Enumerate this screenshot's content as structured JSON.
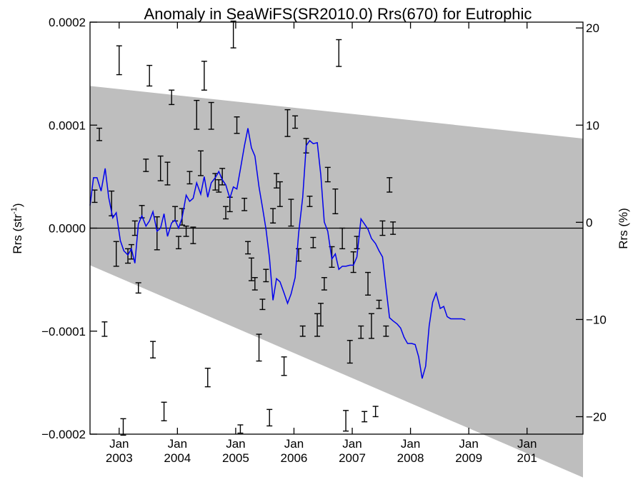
{
  "chart_data": {
    "type": "line",
    "title": "Anomaly in SeaWiFS(SR2010.0) Rrs(670) for Eutrophic",
    "ylabel": "Rrs (str",
    "ylabel_sup": "-1",
    "ylabel_close": ")",
    "y2label": "Rrs (%)",
    "xlim": [
      2002.5,
      2010.96
    ],
    "ylim": [
      -0.0002,
      0.0002
    ],
    "y2lim": [
      -21.8,
      20.6
    ],
    "x_ticks": [
      {
        "x": 2003.0,
        "top": "Jan",
        "bottom": "2003"
      },
      {
        "x": 2004.0,
        "top": "Jan",
        "bottom": "2004"
      },
      {
        "x": 2005.0,
        "top": "Jan",
        "bottom": "2005"
      },
      {
        "x": 2006.0,
        "top": "Jan",
        "bottom": "2006"
      },
      {
        "x": 2007.0,
        "top": "Jan",
        "bottom": "2007"
      },
      {
        "x": 2008.0,
        "top": "Jan",
        "bottom": "2008"
      },
      {
        "x": 2009.0,
        "top": "Jan",
        "bottom": "2009"
      },
      {
        "x": 2010.0,
        "top": "Jan",
        "bottom": "201"
      }
    ],
    "y_ticks": [
      {
        "value": 0.0002,
        "label": "0.0002"
      },
      {
        "value": 0.0001,
        "label": "0.0001"
      },
      {
        "value": 0.0,
        "label": "0.0000"
      },
      {
        "value": -0.0001,
        "label": "−0.0001"
      },
      {
        "value": -0.0002,
        "label": "−0.0002"
      }
    ],
    "y2_ticks": [
      {
        "value": 20,
        "label": "20"
      },
      {
        "value": 10,
        "label": "10"
      },
      {
        "value": 0,
        "label": "0"
      },
      {
        "value": -10,
        "label": "−10"
      },
      {
        "value": -20,
        "label": "−20"
      }
    ],
    "zero_line": 0.0,
    "band": {
      "color": "#bebebe",
      "upper": [
        [
          2002.5,
          0.000138
        ],
        [
          2010.96,
          8.7e-05
        ]
      ],
      "lower": [
        [
          2002.5,
          -3.6e-05
        ],
        [
          2010.96,
          -0.000242
        ]
      ]
    },
    "series": [
      {
        "type": "line",
        "color": "#0000ee",
        "points": [
          [
            2002.5,
            2.2e-05
          ],
          [
            2002.56,
            4.9e-05
          ],
          [
            2002.62,
            4.9e-05
          ],
          [
            2002.69,
            3.6e-05
          ],
          [
            2002.76,
            5.8e-05
          ],
          [
            2002.82,
            3e-05
          ],
          [
            2002.89,
            1e-05
          ],
          [
            2002.95,
            1.5e-05
          ],
          [
            2003.02,
            -1.2e-05
          ],
          [
            2003.08,
            -2.2e-05
          ],
          [
            2003.15,
            -2.6e-05
          ],
          [
            2003.21,
            -2e-05
          ],
          [
            2003.27,
            -3.4e-05
          ],
          [
            2003.33,
            4e-06
          ],
          [
            2003.39,
            1.2e-05
          ],
          [
            2003.46,
            2e-06
          ],
          [
            2003.52,
            7e-06
          ],
          [
            2003.58,
            1.6e-05
          ],
          [
            2003.65,
            -3e-06
          ],
          [
            2003.71,
            0.0
          ],
          [
            2003.77,
            1.4e-05
          ],
          [
            2003.83,
            -8e-06
          ],
          [
            2003.9,
            5e-06
          ],
          [
            2003.96,
            8e-06
          ],
          [
            2004.02,
            0.0
          ],
          [
            2004.08,
            1e-05
          ],
          [
            2004.15,
            3.2e-05
          ],
          [
            2004.21,
            2.6e-05
          ],
          [
            2004.27,
            2.9e-05
          ],
          [
            2004.33,
            4.4e-05
          ],
          [
            2004.4,
            3.3e-05
          ],
          [
            2004.46,
            5e-05
          ],
          [
            2004.52,
            3e-05
          ],
          [
            2004.58,
            4.4e-05
          ],
          [
            2004.65,
            4.9e-05
          ],
          [
            2004.71,
            5.5e-05
          ],
          [
            2004.77,
            4.7e-05
          ],
          [
            2004.83,
            4.2e-05
          ],
          [
            2004.9,
            2.9e-05
          ],
          [
            2004.96,
            4e-05
          ],
          [
            2005.02,
            3.8e-05
          ],
          [
            2005.08,
            5.7e-05
          ],
          [
            2005.15,
            8e-05
          ],
          [
            2005.21,
            9.7e-05
          ],
          [
            2005.27,
            7.8e-05
          ],
          [
            2005.33,
            7e-05
          ],
          [
            2005.4,
            4e-05
          ],
          [
            2005.46,
            2e-05
          ],
          [
            2005.52,
            -1e-06
          ],
          [
            2005.58,
            -2.9e-05
          ],
          [
            2005.64,
            -7e-05
          ],
          [
            2005.7,
            -4.9e-05
          ],
          [
            2005.76,
            -5.2e-05
          ],
          [
            2005.83,
            -6.3e-05
          ],
          [
            2005.89,
            -7.3e-05
          ],
          [
            2005.95,
            -6.4e-05
          ],
          [
            2006.02,
            -4.8e-05
          ],
          [
            2006.08,
            -5e-06
          ],
          [
            2006.15,
            3e-05
          ],
          [
            2006.21,
            8e-05
          ],
          [
            2006.27,
            8.5e-05
          ],
          [
            2006.33,
            8.2e-05
          ],
          [
            2006.4,
            8.3e-05
          ],
          [
            2006.46,
            5.2e-05
          ],
          [
            2006.52,
            6e-06
          ],
          [
            2006.58,
            -3e-06
          ],
          [
            2006.65,
            -3e-05
          ],
          [
            2006.71,
            -2.5e-05
          ],
          [
            2006.77,
            -4e-05
          ],
          [
            2006.83,
            -3.7e-05
          ],
          [
            2006.89,
            -3.7e-05
          ],
          [
            2006.96,
            -3.6e-05
          ],
          [
            2007.02,
            -3.6e-05
          ],
          [
            2007.08,
            -2.8e-05
          ],
          [
            2007.15,
            9e-06
          ],
          [
            2007.21,
            4e-06
          ],
          [
            2007.27,
            -1e-06
          ],
          [
            2007.33,
            -1e-05
          ],
          [
            2007.4,
            -1.5e-05
          ],
          [
            2007.46,
            -2.2e-05
          ],
          [
            2007.52,
            -2.8e-05
          ],
          [
            2007.58,
            -5.8e-05
          ],
          [
            2007.64,
            -8.7e-05
          ],
          [
            2007.7,
            -9e-05
          ],
          [
            2007.77,
            -9.3e-05
          ],
          [
            2007.83,
            -9.7e-05
          ],
          [
            2007.89,
            -0.000106
          ],
          [
            2007.95,
            -0.000112
          ],
          [
            2008.02,
            -0.000112
          ],
          [
            2008.08,
            -0.000113
          ],
          [
            2008.14,
            -0.000125
          ],
          [
            2008.2,
            -0.000146
          ],
          [
            2008.26,
            -0.000134
          ],
          [
            2008.32,
            -9.5e-05
          ],
          [
            2008.38,
            -7.2e-05
          ],
          [
            2008.44,
            -6.3e-05
          ],
          [
            2008.51,
            -7.8e-05
          ],
          [
            2008.57,
            -7.6e-05
          ],
          [
            2008.63,
            -8.6e-05
          ],
          [
            2008.69,
            -8.8e-05
          ],
          [
            2008.75,
            -8.8e-05
          ],
          [
            2008.81,
            -8.8e-05
          ],
          [
            2008.88,
            -8.8e-05
          ],
          [
            2008.94,
            -8.9e-05
          ]
        ]
      }
    ],
    "error_bars": [
      [
        2002.58,
        3.1e-05,
        6e-06
      ],
      [
        2002.66,
        9.1e-05,
        6e-06
      ],
      [
        2002.75,
        -9.8e-05,
        7e-06
      ],
      [
        2002.87,
        2.4e-05,
        1.2e-05
      ],
      [
        2002.95,
        -2.5e-05,
        1.2e-05
      ],
      [
        2003.0,
        0.000163,
        1.4e-05
      ],
      [
        2003.07,
        -0.000193,
        8e-06
      ],
      [
        2003.15,
        -2.7e-05,
        7e-06
      ],
      [
        2003.21,
        -2.3e-05,
        7e-06
      ],
      [
        2003.27,
        0.0,
        7e-06
      ],
      [
        2003.33,
        -5.8e-05,
        5e-06
      ],
      [
        2003.39,
        1.6e-05,
        6e-06
      ],
      [
        2003.46,
        6.1e-05,
        6e-06
      ],
      [
        2003.52,
        0.000148,
        1e-05
      ],
      [
        2003.58,
        -0.000118,
        8e-06
      ],
      [
        2003.65,
        -5e-06,
        1.6e-05
      ],
      [
        2003.71,
        5.8e-05,
        1.2e-05
      ],
      [
        2003.77,
        -0.000178,
        9e-06
      ],
      [
        2003.83,
        5.3e-05,
        1.1e-05
      ],
      [
        2003.9,
        0.000127,
        7e-06
      ],
      [
        2003.96,
        1.4e-05,
        7e-06
      ],
      [
        2004.02,
        -1.4e-05,
        6e-06
      ],
      [
        2004.08,
        1.1e-05,
        8e-06
      ],
      [
        2004.15,
        -3e-06,
        5e-06
      ],
      [
        2004.21,
        4.9e-05,
        6e-06
      ],
      [
        2004.27,
        -7e-06,
        8e-06
      ],
      [
        2004.33,
        0.00011,
        1.4e-05
      ],
      [
        2004.4,
        6.3e-05,
        1.2e-05
      ],
      [
        2004.46,
        0.000148,
        1.4e-05
      ],
      [
        2004.52,
        -0.000145,
        9e-06
      ],
      [
        2004.58,
        0.000109,
        1.3e-05
      ],
      [
        2004.65,
        4.5e-05,
        8e-06
      ],
      [
        2004.71,
        4.1e-05,
        6e-06
      ],
      [
        2004.77,
        5e-05,
        8e-06
      ],
      [
        2004.83,
        1.5e-05,
        6e-06
      ],
      [
        2004.9,
        2.3e-05,
        7e-06
      ],
      [
        2004.96,
        0.000188,
        1.3e-05
      ],
      [
        2005.02,
        0.0001,
        8e-06
      ],
      [
        2005.08,
        -0.000195,
        4e-06
      ],
      [
        2005.15,
        2.3e-05,
        6e-06
      ],
      [
        2005.21,
        -1.9e-05,
        6e-06
      ],
      [
        2005.27,
        -4e-05,
        1.1e-05
      ],
      [
        2005.33,
        -5.4e-05,
        6e-06
      ],
      [
        2005.4,
        -0.000116,
        1.3e-05
      ],
      [
        2005.46,
        -7.4e-05,
        5e-06
      ],
      [
        2005.52,
        -4.6e-05,
        6e-06
      ],
      [
        2005.58,
        -0.000184,
        8e-06
      ],
      [
        2005.64,
        1.2e-05,
        7e-06
      ],
      [
        2005.7,
        4.6e-05,
        7e-06
      ],
      [
        2005.76,
        3.3e-05,
        1.2e-05
      ],
      [
        2005.83,
        -0.000134,
        9e-06
      ],
      [
        2005.89,
        0.000102,
        1.3e-05
      ],
      [
        2005.95,
        1.5e-05,
        1.3e-05
      ],
      [
        2006.02,
        0.000103,
        6e-06
      ],
      [
        2006.08,
        -2.6e-05,
        6e-06
      ],
      [
        2006.15,
        -0.0001,
        5e-06
      ],
      [
        2006.21,
        8e-05,
        7e-06
      ],
      [
        2006.27,
        2.6e-05,
        5e-06
      ],
      [
        2006.33,
        -1.4e-05,
        5e-06
      ],
      [
        2006.4,
        -9.4e-05,
        1.1e-05
      ],
      [
        2006.46,
        -8.4e-05,
        1.1e-05
      ],
      [
        2006.52,
        -5.4e-05,
        6e-06
      ],
      [
        2006.58,
        5.2e-05,
        7e-06
      ],
      [
        2006.65,
        -2.8e-05,
        1e-05
      ],
      [
        2006.71,
        2.6e-05,
        1.2e-05
      ],
      [
        2006.77,
        0.00017,
        1.3e-05
      ],
      [
        2006.83,
        -1e-05,
        1e-05
      ],
      [
        2006.89,
        -0.000187,
        1e-05
      ],
      [
        2006.96,
        -0.00012,
        1.1e-05
      ],
      [
        2007.02,
        -3.3e-05,
        1e-05
      ],
      [
        2007.08,
        -1.4e-05,
        6e-06
      ],
      [
        2007.15,
        -0.000101,
        6e-06
      ],
      [
        2007.21,
        -0.000183,
        5e-06
      ],
      [
        2007.27,
        -5.4e-05,
        1.1e-05
      ],
      [
        2007.33,
        -9.5e-05,
        1.2e-05
      ],
      [
        2007.4,
        -0.000178,
        5e-06
      ],
      [
        2007.46,
        -7.4e-05,
        4e-06
      ],
      [
        2007.52,
        0.0,
        7e-06
      ],
      [
        2007.58,
        -0.0001,
        5e-06
      ],
      [
        2007.64,
        4.2e-05,
        7e-06
      ],
      [
        2007.7,
        0.0,
        6e-06
      ]
    ]
  }
}
